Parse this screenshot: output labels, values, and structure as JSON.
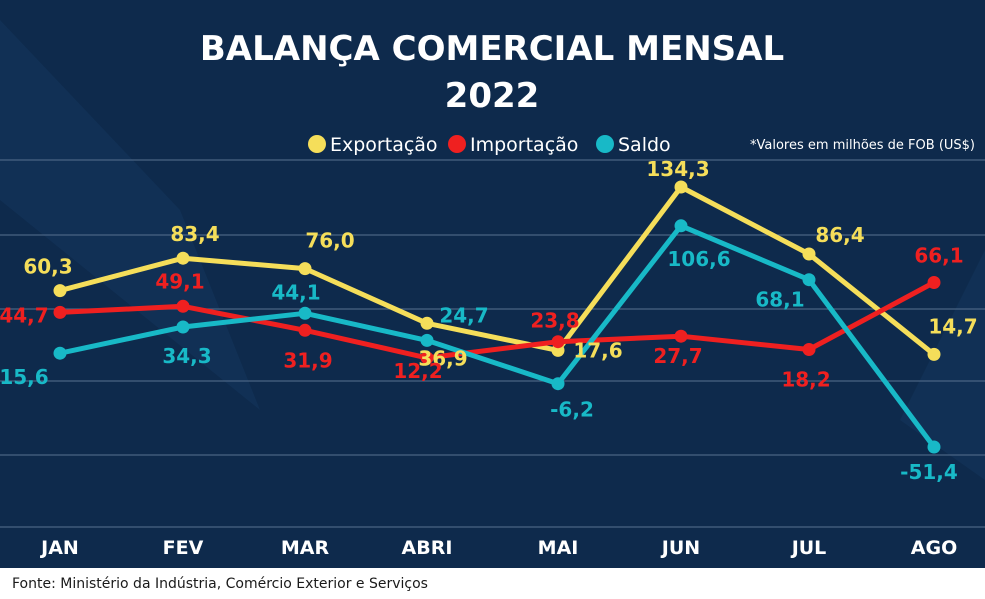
{
  "colors": {
    "background": "#0e2a4c",
    "gridline": "#4a6483",
    "exportacao": "#f5de5a",
    "importacao": "#ef2020",
    "saldo": "#18b9c7",
    "footer_bg": "#ffffff"
  },
  "chart_data": {
    "type": "line",
    "title": "BALANÇA COMERCIAL MENSAL",
    "subtitle": "2022",
    "note": "*Valores em milhões de FOB (US$)",
    "categories": [
      "JAN",
      "FEV",
      "MAR",
      "ABRI",
      "MAI",
      "JUN",
      "JUL",
      "AGO"
    ],
    "series": [
      {
        "name": "Exportação",
        "color": "#f5de5a",
        "values": [
          60.3,
          83.4,
          76.0,
          36.9,
          17.6,
          134.3,
          86.4,
          14.7
        ],
        "labels": [
          "60,3",
          "83,4",
          "76,0",
          "36,9",
          "17,6",
          "134,3",
          "86,4",
          "14,7"
        ]
      },
      {
        "name": "Importação",
        "color": "#ef2020",
        "values": [
          44.7,
          49.1,
          31.9,
          12.2,
          23.8,
          27.7,
          18.2,
          66.1
        ],
        "labels": [
          "44,7",
          "49,1",
          "31,9",
          "12,2",
          "23,8",
          "27,7",
          "18,2",
          "66,1"
        ]
      },
      {
        "name": "Saldo",
        "color": "#18b9c7",
        "values": [
          15.6,
          34.3,
          44.1,
          24.7,
          -6.2,
          106.6,
          68.1,
          -51.4
        ],
        "labels": [
          "15,6",
          "34,3",
          "44,1",
          "24,7",
          "-6,2",
          "106,6",
          "68,1",
          "-51,4"
        ]
      }
    ],
    "legend": "top",
    "grid": true
  },
  "footer": {
    "source": "Fonte: Ministério da Indústria, Comércio Exterior e Serviços"
  }
}
